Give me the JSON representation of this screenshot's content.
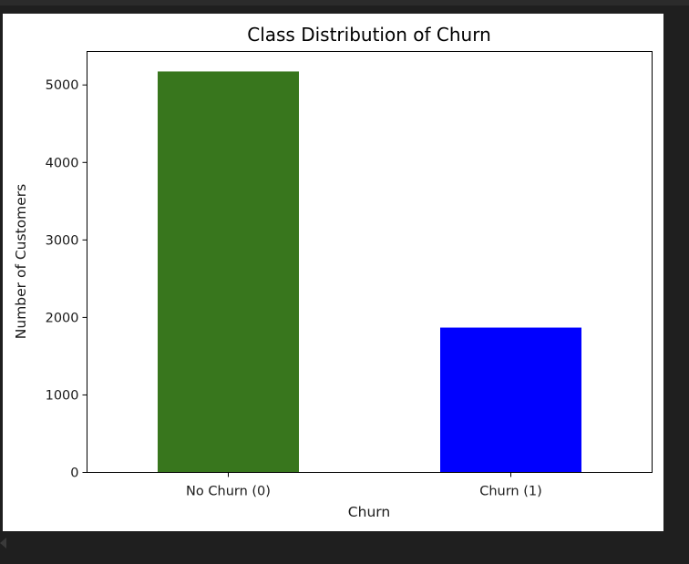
{
  "chart_data": {
    "type": "bar",
    "title": "Class Distribution of Churn",
    "xlabel": "Churn",
    "ylabel": "Number of Customers",
    "categories": [
      "No Churn (0)",
      "Churn (1)"
    ],
    "values": [
      5174,
      1869
    ],
    "colors": [
      "#38761d",
      "#0000ff"
    ],
    "ylim": [
      0,
      5432
    ],
    "yticks": [
      "0",
      "1000",
      "2000",
      "3000",
      "4000",
      "5000"
    ],
    "grid": false,
    "legend": "none"
  }
}
